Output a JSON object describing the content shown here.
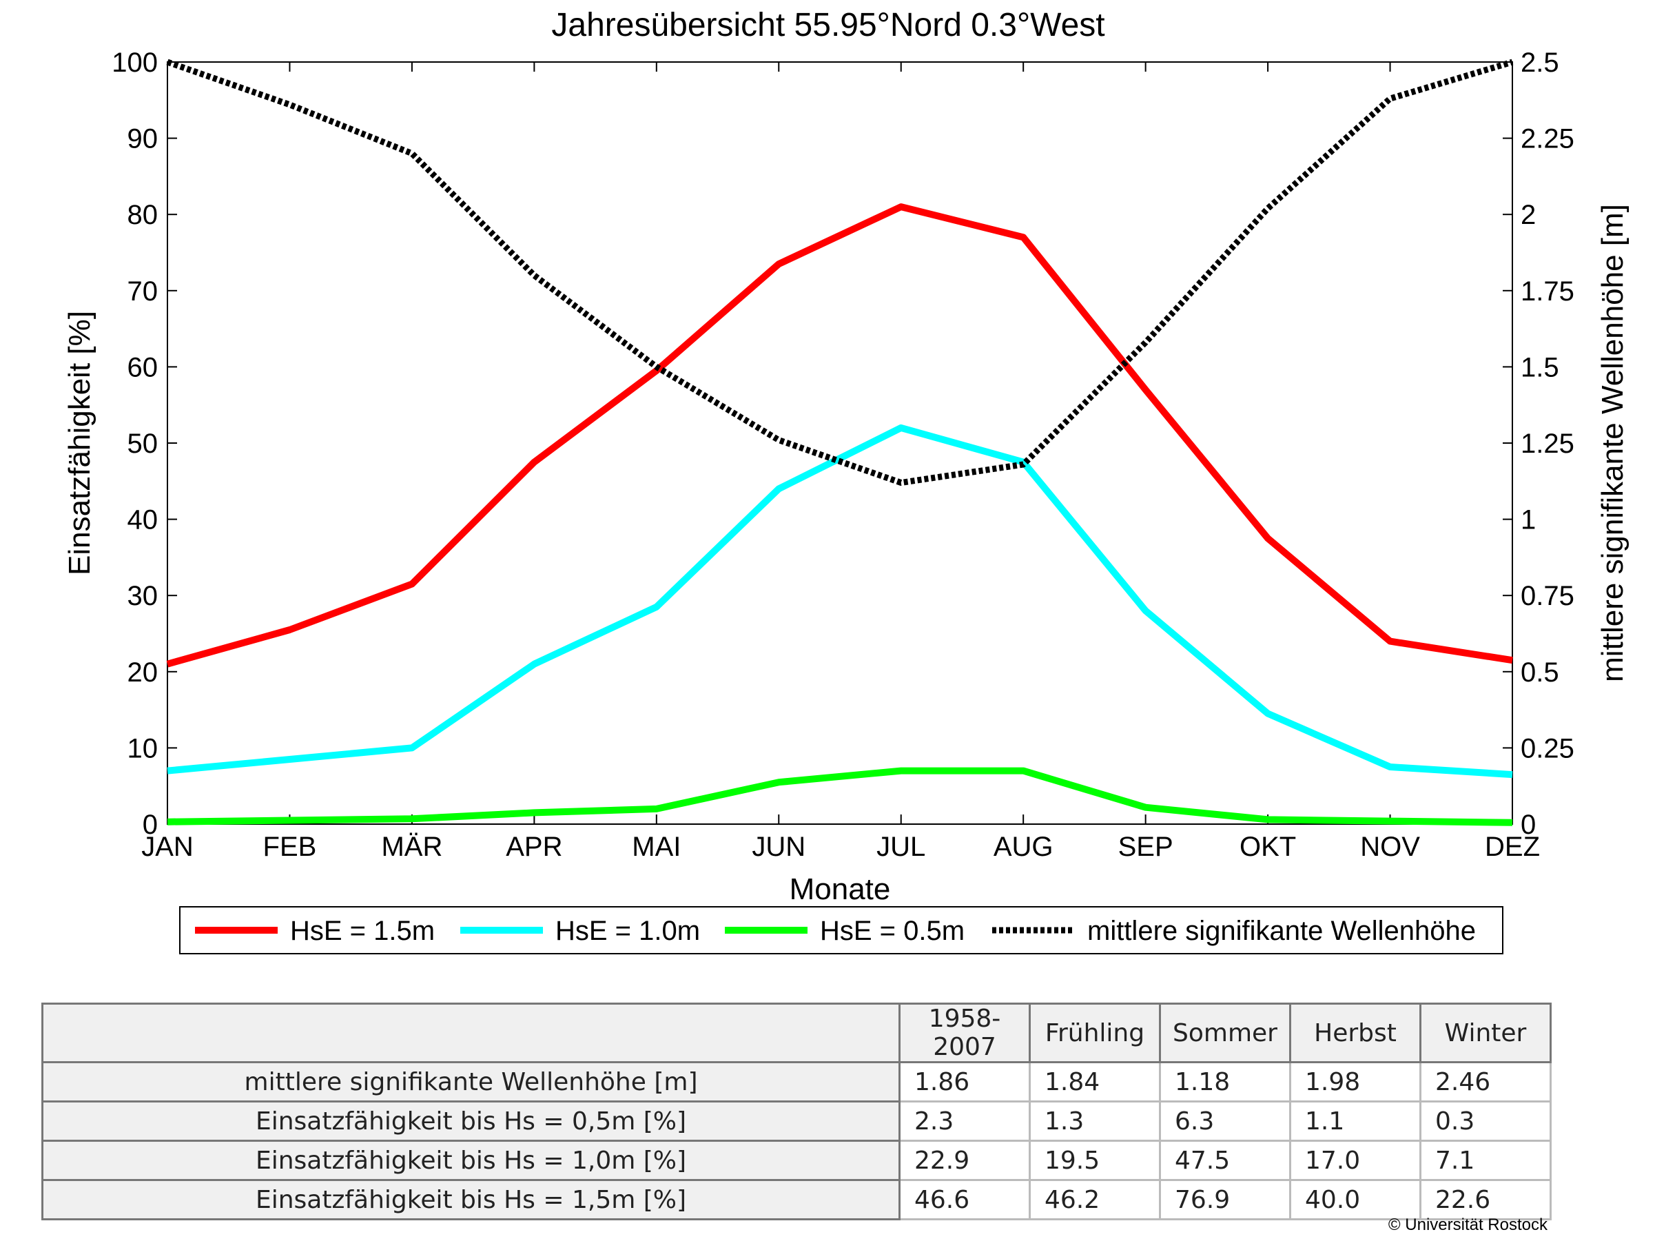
{
  "chart_data": {
    "type": "line",
    "title": "Jahresübersicht  55.95°Nord  0.3°West",
    "xlabel": "Monate",
    "ylabel": "Einsatzfähigkeit [%]",
    "y2label": "mittlere signifikante Wellenhöhe [m]",
    "categories": [
      "JAN",
      "FEB",
      "MÄR",
      "APR",
      "MAI",
      "JUN",
      "JUL",
      "AUG",
      "SEP",
      "OKT",
      "NOV",
      "DEZ"
    ],
    "ylim": [
      0,
      100
    ],
    "y2lim": [
      0,
      2.5
    ],
    "yticks": [
      "0",
      "10",
      "20",
      "30",
      "40",
      "50",
      "60",
      "70",
      "80",
      "90",
      "100"
    ],
    "y2ticks": [
      "0",
      "0.25",
      "0.5",
      "0.75",
      "1",
      "1.25",
      "1.5",
      "1.75",
      "2",
      "2.25",
      "2.5"
    ],
    "grid": false,
    "legend_position": "bottom",
    "series": [
      {
        "name": "HsE = 1.5m",
        "color": "#ff0000",
        "axis": "left",
        "style": "solid",
        "values": [
          21,
          25.5,
          31.5,
          47.5,
          59.5,
          73.5,
          81,
          77,
          57,
          37.5,
          24,
          21.5
        ]
      },
      {
        "name": "HsE = 1.0m",
        "color": "#00ffff",
        "axis": "left",
        "style": "solid",
        "values": [
          7,
          8.5,
          10,
          21,
          28.5,
          44,
          52,
          47.5,
          28,
          14.5,
          7.5,
          6.5
        ]
      },
      {
        "name": "HsE = 0.5m",
        "color": "#00ff00",
        "axis": "left",
        "style": "solid",
        "values": [
          0.3,
          0.5,
          0.7,
          1.5,
          2,
          5.5,
          7,
          7,
          2.2,
          0.6,
          0.4,
          0.2
        ]
      },
      {
        "name": "mittlere signifikante Wellenhöhe",
        "color": "#000000",
        "axis": "right",
        "style": "dotted",
        "values": [
          2.5,
          2.36,
          2.2,
          1.8,
          1.5,
          1.26,
          1.12,
          1.18,
          1.58,
          2.02,
          2.38,
          2.5
        ]
      }
    ]
  },
  "table": {
    "columns": [
      "",
      "1958-2007",
      "Frühling",
      "Sommer",
      "Herbst",
      "Winter"
    ],
    "rows": [
      {
        "label": "mittlere signifikante Wellenhöhe [m]",
        "values": [
          "1.86",
          "1.84",
          "1.18",
          "1.98",
          "2.46"
        ]
      },
      {
        "label": "Einsatzfähigkeit bis Hs = 0,5m [%]",
        "values": [
          "2.3",
          "1.3",
          "6.3",
          "1.1",
          "0.3"
        ]
      },
      {
        "label": "Einsatzfähigkeit bis Hs = 1,0m [%]",
        "values": [
          "22.9",
          "19.5",
          "47.5",
          "17.0",
          "7.1"
        ]
      },
      {
        "label": "Einsatzfähigkeit bis Hs = 1,5m [%]",
        "values": [
          "46.6",
          "46.2",
          "76.9",
          "40.0",
          "22.6"
        ]
      }
    ]
  },
  "copyright": "© Universität Rostock"
}
